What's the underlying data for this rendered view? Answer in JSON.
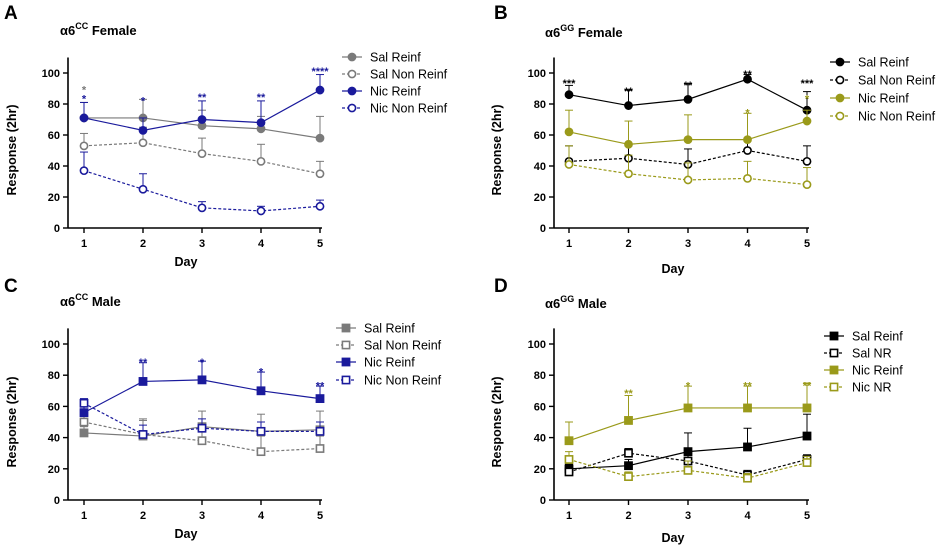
{
  "colors": {
    "sal_gray": "#7a7a7a",
    "nic_navy": "#1a1a9c",
    "sal_black": "#000000",
    "nic_olive": "#9a9a1a"
  },
  "chart_data": [
    {
      "id": "A",
      "panel": "A",
      "type": "line",
      "title_main": "α6",
      "title_sup": "CC",
      "title_rest": " Female",
      "xlabel": "Day",
      "ylabel": "Response (2hr)",
      "categories": [
        "1",
        "2",
        "3",
        "4",
        "5"
      ],
      "yticks": [
        "0",
        "20",
        "40",
        "60",
        "80",
        "100"
      ],
      "ylim": [
        0,
        110
      ],
      "series": [
        {
          "name": "Sal Reinf",
          "color": "#7a7a7a",
          "marker": "circle",
          "filled": true,
          "dashed": false,
          "values": [
            71,
            71,
            66,
            64,
            58
          ],
          "err": [
            10,
            12,
            10,
            8,
            14
          ]
        },
        {
          "name": "Sal Non Reinf",
          "color": "#7a7a7a",
          "marker": "circle",
          "filled": false,
          "dashed": true,
          "values": [
            53,
            55,
            48,
            43,
            35
          ],
          "err": [
            8,
            10,
            10,
            11,
            8
          ]
        },
        {
          "name": "Nic Reinf",
          "color": "#1a1a9c",
          "marker": "circle",
          "filled": true,
          "dashed": false,
          "values": [
            71,
            63,
            70,
            68,
            89
          ],
          "err": [
            10,
            8,
            12,
            14,
            10
          ]
        },
        {
          "name": "Nic Non Reinf",
          "color": "#1a1a9c",
          "marker": "circle",
          "filled": false,
          "dashed": true,
          "values": [
            37,
            25,
            13,
            11,
            14
          ],
          "err": [
            12,
            10,
            4,
            3,
            4
          ]
        }
      ],
      "annotations": [
        {
          "day": 1,
          "y": 92,
          "text": "*",
          "color": "#7a7a7a"
        },
        {
          "day": 1,
          "y": 86,
          "text": "*",
          "color": "#1a1a9c"
        },
        {
          "day": 2,
          "y": 85,
          "text": "*",
          "color": "#1a1a9c"
        },
        {
          "day": 3,
          "y": 87,
          "text": "**",
          "color": "#1a1a9c"
        },
        {
          "day": 4,
          "y": 87,
          "text": "**",
          "color": "#1a1a9c"
        },
        {
          "day": 5,
          "y": 104,
          "text": "****",
          "color": "#1a1a9c"
        }
      ]
    },
    {
      "id": "B",
      "panel": "B",
      "type": "line",
      "title_main": "α6",
      "title_sup": "GG",
      "title_rest": " Female",
      "xlabel": "Day",
      "ylabel": "Response (2hr)",
      "categories": [
        "1",
        "2",
        "3",
        "4",
        "5"
      ],
      "yticks": [
        "0",
        "20",
        "40",
        "60",
        "80",
        "100"
      ],
      "ylim": [
        0,
        110
      ],
      "series": [
        {
          "name": "Sal Reinf",
          "color": "#000000",
          "marker": "circle",
          "filled": true,
          "dashed": false,
          "values": [
            86,
            79,
            83,
            96,
            76
          ],
          "err": [
            6,
            10,
            10,
            3,
            12
          ]
        },
        {
          "name": "Sal Non Reinf",
          "color": "#000000",
          "marker": "circle",
          "filled": false,
          "dashed": true,
          "values": [
            43,
            45,
            41,
            50,
            43
          ],
          "err": [
            10,
            8,
            10,
            8,
            10
          ]
        },
        {
          "name": "Nic Reinf",
          "color": "#9a9a1a",
          "marker": "circle",
          "filled": true,
          "dashed": false,
          "values": [
            62,
            54,
            57,
            57,
            69
          ],
          "err": [
            14,
            15,
            16,
            17,
            7
          ]
        },
        {
          "name": "Nic Non Reinf",
          "color": "#9a9a1a",
          "marker": "circle",
          "filled": false,
          "dashed": true,
          "values": [
            41,
            35,
            31,
            32,
            28
          ],
          "err": [
            12,
            12,
            11,
            11,
            11
          ]
        }
      ],
      "annotations": [
        {
          "day": 1,
          "y": 96,
          "text": "***",
          "color": "#000000"
        },
        {
          "day": 2,
          "y": 91,
          "text": "**",
          "color": "#000000"
        },
        {
          "day": 3,
          "y": 95,
          "text": "**",
          "color": "#000000"
        },
        {
          "day": 4,
          "y": 102,
          "text": "**",
          "color": "#000000"
        },
        {
          "day": 4,
          "y": 77,
          "text": "*",
          "color": "#9a9a1a"
        },
        {
          "day": 5,
          "y": 96,
          "text": "***",
          "color": "#000000"
        },
        {
          "day": 5,
          "y": 86,
          "text": "*",
          "color": "#9a9a1a"
        }
      ]
    },
    {
      "id": "C",
      "panel": "C",
      "type": "line",
      "title_main": "α6",
      "title_sup": "CC",
      "title_rest": " Male",
      "xlabel": "Day",
      "ylabel": "Response (2hr)",
      "categories": [
        "1",
        "2",
        "3",
        "4",
        "5"
      ],
      "yticks": [
        "0",
        "20",
        "40",
        "60",
        "80",
        "100"
      ],
      "ylim": [
        0,
        110
      ],
      "series": [
        {
          "name": "Sal Reinf",
          "color": "#7a7a7a",
          "marker": "square",
          "filled": true,
          "dashed": false,
          "values": [
            43,
            41,
            47,
            44,
            45
          ],
          "err": [
            4,
            10,
            10,
            11,
            12
          ]
        },
        {
          "name": "Sal Non Reinf",
          "color": "#7a7a7a",
          "marker": "square",
          "filled": false,
          "dashed": true,
          "values": [
            50,
            42,
            38,
            31,
            33
          ],
          "err": [
            6,
            10,
            11,
            10,
            8
          ]
        },
        {
          "name": "Nic Reinf",
          "color": "#1a1a9c",
          "marker": "square",
          "filled": true,
          "dashed": false,
          "values": [
            56,
            76,
            77,
            70,
            65
          ],
          "err": [
            5,
            12,
            12,
            12,
            8
          ]
        },
        {
          "name": "Nic Non Reinf",
          "color": "#1a1a9c",
          "marker": "square",
          "filled": false,
          "dashed": true,
          "values": [
            62,
            42,
            46,
            44,
            44
          ],
          "err": [
            3,
            6,
            6,
            6,
            6
          ]
        }
      ],
      "annotations": [
        {
          "day": 2,
          "y": 91,
          "text": "**",
          "color": "#1a1a9c"
        },
        {
          "day": 3,
          "y": 91,
          "text": "*",
          "color": "#1a1a9c"
        },
        {
          "day": 4,
          "y": 85,
          "text": "*",
          "color": "#1a1a9c"
        },
        {
          "day": 5,
          "y": 76,
          "text": "**",
          "color": "#1a1a9c"
        }
      ]
    },
    {
      "id": "D",
      "panel": "D",
      "type": "line",
      "title_main": "α6",
      "title_sup": "GG",
      "title_rest": " Male",
      "xlabel": "Day",
      "ylabel": "Response (2hr)",
      "categories": [
        "1",
        "2",
        "3",
        "4",
        "5"
      ],
      "yticks": [
        "0",
        "20",
        "40",
        "60",
        "80",
        "100"
      ],
      "ylim": [
        0,
        110
      ],
      "series": [
        {
          "name": "Sal Reinf",
          "color": "#000000",
          "marker": "square",
          "filled": true,
          "dashed": false,
          "values": [
            20,
            22,
            31,
            34,
            41
          ],
          "err": [
            3,
            4,
            12,
            12,
            14
          ]
        },
        {
          "name": "Sal NR",
          "color": "#000000",
          "marker": "square",
          "filled": false,
          "dashed": true,
          "values": [
            18,
            30,
            25,
            16,
            26
          ],
          "err": [
            3,
            3,
            5,
            3,
            3
          ]
        },
        {
          "name": "Nic Reinf",
          "color": "#9a9a1a",
          "marker": "square",
          "filled": true,
          "dashed": false,
          "values": [
            38,
            51,
            59,
            59,
            59
          ],
          "err": [
            12,
            16,
            14,
            14,
            16
          ]
        },
        {
          "name": "Nic NR",
          "color": "#9a9a1a",
          "marker": "square",
          "filled": false,
          "dashed": true,
          "values": [
            26,
            15,
            19,
            14,
            24
          ],
          "err": [
            5,
            3,
            6,
            3,
            4
          ]
        }
      ],
      "annotations": [
        {
          "day": 2,
          "y": 71,
          "text": "**",
          "color": "#9a9a1a"
        },
        {
          "day": 3,
          "y": 76,
          "text": "*",
          "color": "#9a9a1a"
        },
        {
          "day": 4,
          "y": 76,
          "text": "**",
          "color": "#9a9a1a"
        },
        {
          "day": 5,
          "y": 76,
          "text": "**",
          "color": "#9a9a1a"
        }
      ]
    }
  ]
}
